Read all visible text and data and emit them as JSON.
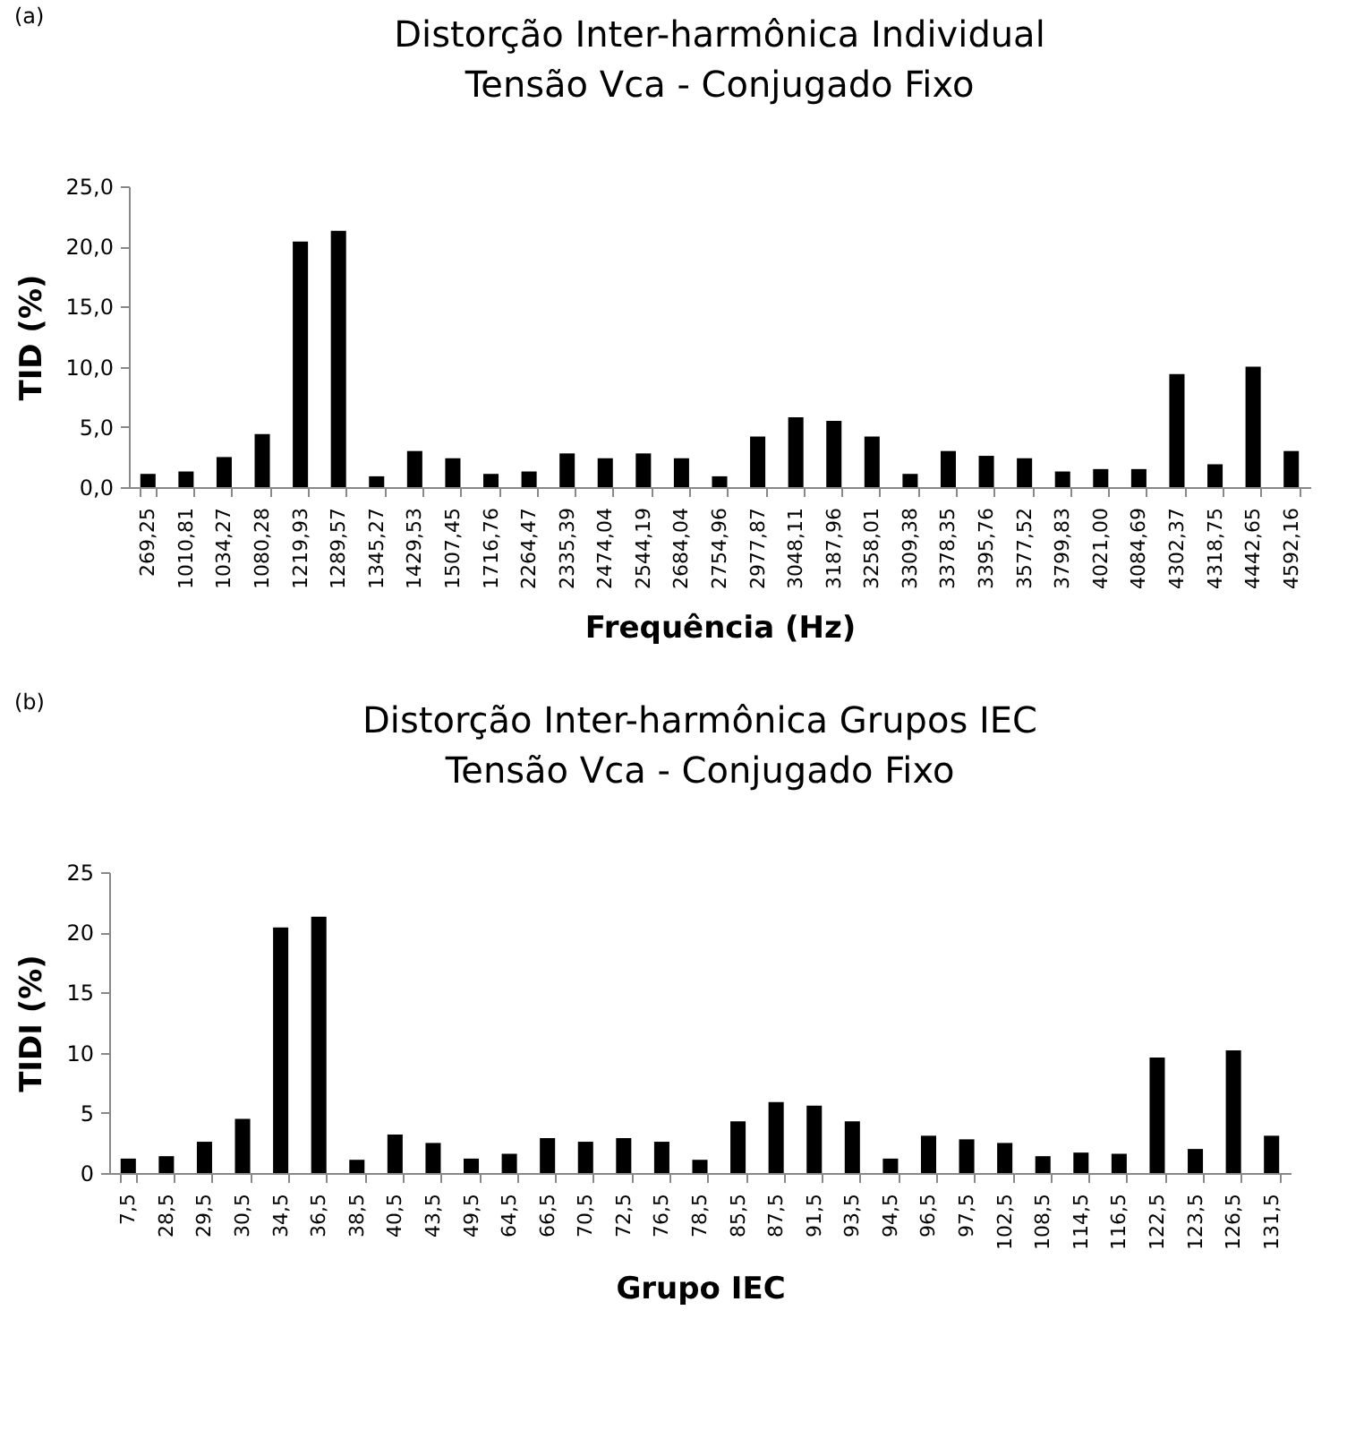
{
  "chart_data": [
    {
      "type": "bar",
      "title": "Distorção Inter-harmônica Individual",
      "subtitle": "Tensão Vca - Conjugado Fixo",
      "xlabel": "Frequência (Hz)",
      "ylabel": "TID (%)",
      "annotations": [
        "(a)"
      ],
      "categories": [
        "269,25",
        "1010,81",
        "1034,27",
        "1080,28",
        "1219,93",
        "1289,57",
        "1345,27",
        "1429,53",
        "1507,45",
        "1716,76",
        "2264,47",
        "2335,39",
        "2474,04",
        "2544,19",
        "2684,04",
        "2754,96",
        "2977,87",
        "3048,11",
        "3187,96",
        "3258,01",
        "3309,38",
        "3378,35",
        "3395,76",
        "3577,52",
        "3799,83",
        "4021,00",
        "4084,69",
        "4302,37",
        "4318,75",
        "4442,65",
        "4592,16"
      ],
      "values": [
        1.1,
        1.3,
        2.5,
        4.4,
        20.4,
        21.3,
        0.9,
        3.0,
        2.4,
        1.1,
        1.3,
        2.8,
        2.4,
        2.8,
        2.4,
        0.9,
        4.2,
        5.8,
        5.5,
        4.2,
        1.1,
        3.0,
        2.6,
        2.4,
        1.3,
        1.5,
        1.5,
        9.4,
        1.9,
        10.0,
        3.0
      ],
      "color": "#000000",
      "ylim": [
        0,
        25
      ],
      "yticks": [
        {
          "value": 0,
          "label": "0,0"
        },
        {
          "value": 5,
          "label": "5,0"
        },
        {
          "value": 10,
          "label": "10,0"
        },
        {
          "value": 15,
          "label": "15,0"
        },
        {
          "value": 20,
          "label": "20,0"
        },
        {
          "value": 25,
          "label": "25,0"
        }
      ],
      "grid": false
    },
    {
      "type": "bar",
      "title": "Distorção Inter-harmônica Grupos IEC",
      "subtitle": "Tensão Vca - Conjugado Fixo",
      "xlabel": "Grupo IEC",
      "ylabel": "TIDI (%)",
      "annotations": [
        "(b)"
      ],
      "categories": [
        "7,5",
        "28,5",
        "29,5",
        "30,5",
        "34,5",
        "36,5",
        "38,5",
        "40,5",
        "43,5",
        "49,5",
        "64,5",
        "66,5",
        "70,5",
        "72,5",
        "76,5",
        "78,5",
        "85,5",
        "87,5",
        "91,5",
        "93,5",
        "94,5",
        "96,5",
        "97,5",
        "102,5",
        "108,5",
        "114,5",
        "116,5",
        "122,5",
        "123,5",
        "126,5",
        "131,5"
      ],
      "values": [
        1.2,
        1.4,
        2.6,
        4.5,
        20.4,
        21.3,
        1.1,
        3.2,
        2.5,
        1.2,
        1.6,
        2.9,
        2.6,
        2.9,
        2.6,
        1.1,
        4.3,
        5.9,
        5.6,
        4.3,
        1.2,
        3.1,
        2.8,
        2.5,
        1.4,
        1.7,
        1.6,
        9.6,
        2.0,
        10.2,
        3.1
      ],
      "color": "#000000",
      "ylim": [
        0,
        25
      ],
      "yticks": [
        0,
        5,
        10,
        15,
        20,
        25
      ],
      "grid": false
    }
  ]
}
